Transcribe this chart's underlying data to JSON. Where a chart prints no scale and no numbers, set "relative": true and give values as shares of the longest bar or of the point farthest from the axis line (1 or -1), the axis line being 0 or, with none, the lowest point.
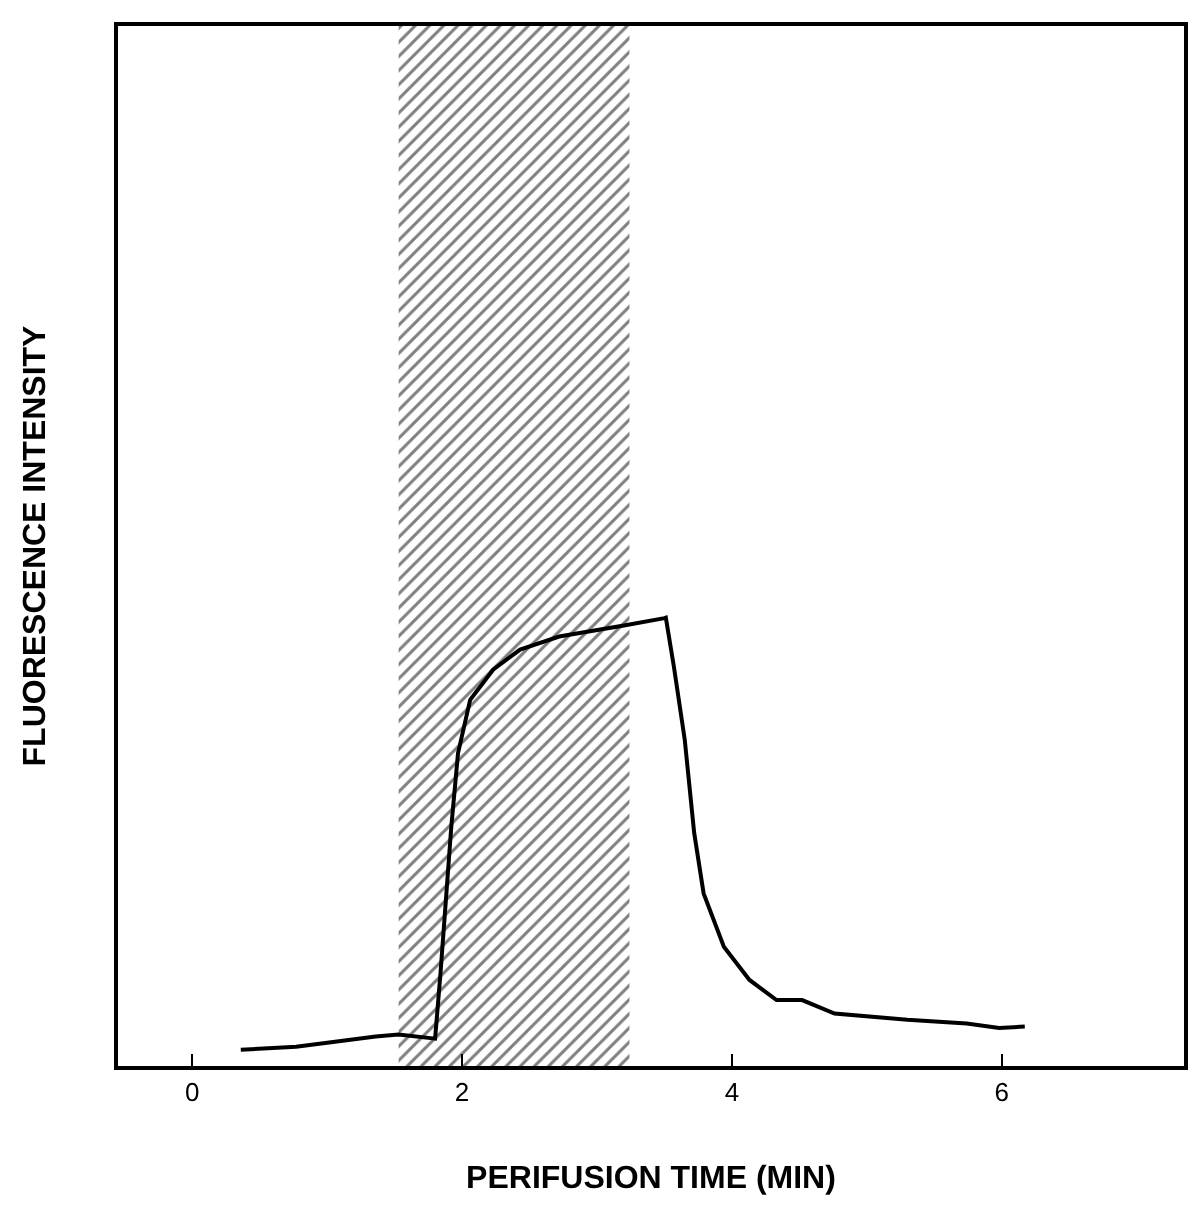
{
  "chart_data": {
    "type": "line",
    "relative": true,
    "xlabel": "PERIFUSION TIME (MIN)",
    "ylabel": "FLUORESCENCE INTENSITY",
    "xlim": [
      -0.55,
      7.35
    ],
    "xticks": [
      0,
      2,
      4,
      6
    ],
    "marker": "none",
    "line_style": "solid",
    "bands": [
      {
        "axis": "x",
        "from": 1.53,
        "to": 3.24,
        "color": "#000000"
      }
    ],
    "series": [
      {
        "color": "#000000",
        "x": [
          0.36,
          0.77,
          1.36,
          1.53,
          1.8,
          1.84,
          1.92,
          1.97,
          2.06,
          2.23,
          2.43,
          2.72,
          3.21,
          3.5,
          3.51,
          3.57,
          3.65,
          3.72,
          3.79,
          3.94,
          4.13,
          4.33,
          4.52,
          4.76,
          5.3,
          5.74,
          5.98,
          6.17
        ],
        "values": [
          0.036,
          0.043,
          0.066,
          0.07,
          0.061,
          0.207,
          0.534,
          0.698,
          0.817,
          0.884,
          0.929,
          0.958,
          0.983,
          0.999,
          1.0,
          0.89,
          0.728,
          0.52,
          0.385,
          0.266,
          0.192,
          0.147,
          0.147,
          0.117,
          0.103,
          0.095,
          0.085,
          0.088
        ]
      }
    ]
  }
}
